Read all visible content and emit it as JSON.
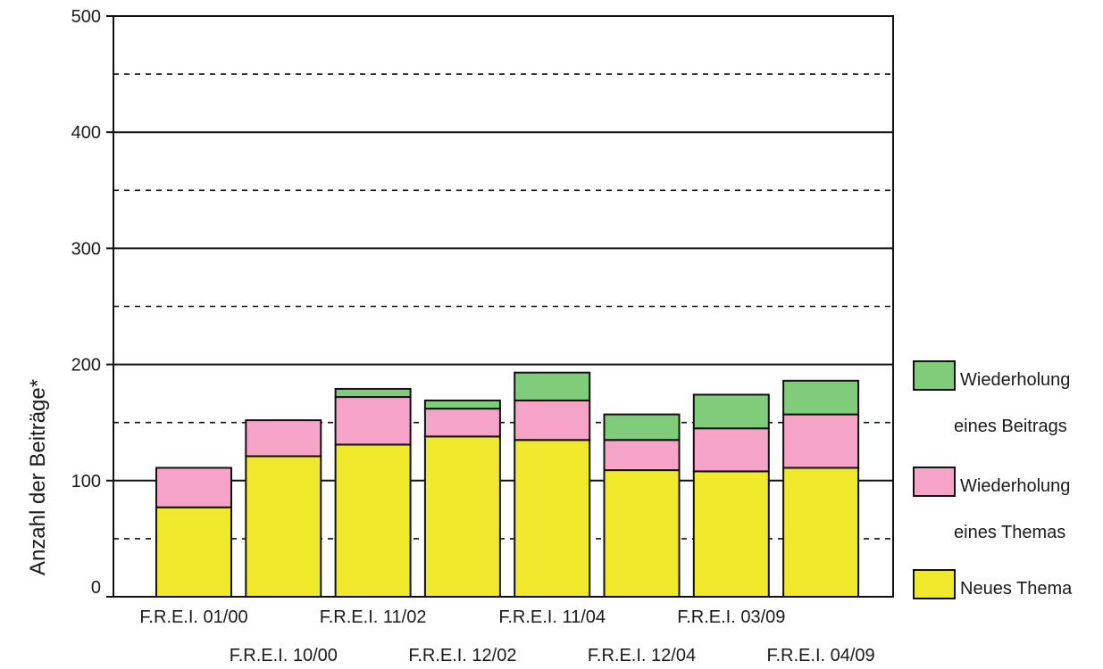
{
  "chart_data": {
    "type": "bar",
    "stacked": true,
    "ylabel": "Anzahl der Beiträge*",
    "xlabel": "",
    "ylim": [
      0,
      500
    ],
    "yticks": [
      0,
      100,
      200,
      300,
      400,
      500
    ],
    "grid": "solid at 100s, dashed at 50s",
    "categories": [
      "F.R.E.I. 01/00",
      "F.R.E.I. 10/00",
      "F.R.E.I. 11/02",
      "F.R.E.I. 12/02",
      "F.R.E.I. 11/04",
      "F.R.E.I. 12/04",
      "F.R.E.I. 03/09",
      "F.R.E.I. 04/09"
    ],
    "series": [
      {
        "name": "Neues Thema",
        "color": "#f0e82a",
        "values": [
          77,
          121,
          131,
          138,
          135,
          109,
          108,
          111
        ]
      },
      {
        "name": "Wiederholung eines Themas",
        "color": "#f5a3c7",
        "values": [
          34,
          31,
          41,
          24,
          34,
          26,
          37,
          46
        ]
      },
      {
        "name": "Wiederholung eines Beitrags",
        "color": "#7fcc7a",
        "values": [
          0,
          0,
          7,
          7,
          24,
          22,
          29,
          29
        ]
      }
    ],
    "legend": {
      "position": "right",
      "items": [
        {
          "lines": [
            "Wiederholung",
            "eines Beitrags"
          ],
          "color": "#7fcc7a"
        },
        {
          "lines": [
            "Wiederholung",
            "eines Themas"
          ],
          "color": "#f5a3c7"
        },
        {
          "lines": [
            "Neues Thema"
          ],
          "color": "#f0e82a"
        }
      ]
    }
  }
}
